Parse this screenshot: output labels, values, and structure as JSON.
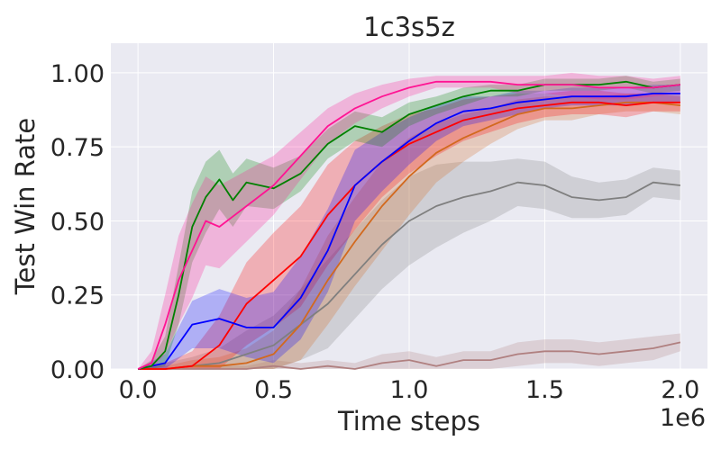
{
  "chart_data": {
    "type": "line",
    "title": "1c3s5z",
    "xlabel": "Time steps",
    "ylabel": "Test Win Rate",
    "x_scale_label": "1e6",
    "xlim": [
      -0.1,
      2.1
    ],
    "ylim": [
      0.0,
      1.1
    ],
    "x_ticks": [
      0.0,
      0.5,
      1.0,
      1.5,
      2.0
    ],
    "x_tick_labels": [
      "0.0",
      "0.5",
      "1.0",
      "1.5",
      "2.0"
    ],
    "y_ticks": [
      0.0,
      0.25,
      0.5,
      0.75,
      1.0
    ],
    "y_tick_labels": [
      "0.00",
      "0.25",
      "0.50",
      "0.75",
      "1.00"
    ],
    "grid": true,
    "background": "#eaeaf2",
    "series": [
      {
        "color": "#b08080",
        "x": [
          0.0,
          0.1,
          0.2,
          0.3,
          0.4,
          0.5,
          0.6,
          0.7,
          0.8,
          0.9,
          1.0,
          1.1,
          1.2,
          1.3,
          1.4,
          1.5,
          1.6,
          1.7,
          1.8,
          1.9,
          2.0
        ],
        "y": [
          0.0,
          0.0,
          0.0,
          0.0,
          0.0,
          0.01,
          0.0,
          0.01,
          0.0,
          0.02,
          0.03,
          0.01,
          0.03,
          0.03,
          0.05,
          0.06,
          0.06,
          0.05,
          0.06,
          0.07,
          0.09
        ],
        "band": [
          0.0,
          0.0,
          0.01,
          0.01,
          0.01,
          0.02,
          0.02,
          0.02,
          0.02,
          0.03,
          0.03,
          0.03,
          0.03,
          0.03,
          0.04,
          0.04,
          0.04,
          0.04,
          0.04,
          0.04,
          0.03
        ]
      },
      {
        "color": "#7f7f7f",
        "x": [
          0.0,
          0.1,
          0.2,
          0.3,
          0.4,
          0.5,
          0.6,
          0.7,
          0.8,
          0.9,
          1.0,
          1.1,
          1.2,
          1.3,
          1.4,
          1.5,
          1.6,
          1.7,
          1.8,
          1.9,
          2.0
        ],
        "y": [
          0.0,
          0.0,
          0.01,
          0.02,
          0.05,
          0.08,
          0.15,
          0.22,
          0.32,
          0.42,
          0.5,
          0.55,
          0.58,
          0.6,
          0.63,
          0.62,
          0.58,
          0.57,
          0.58,
          0.63,
          0.62
        ],
        "band": [
          0.0,
          0.02,
          0.03,
          0.05,
          0.08,
          0.1,
          0.12,
          0.15,
          0.15,
          0.15,
          0.15,
          0.14,
          0.12,
          0.1,
          0.08,
          0.08,
          0.07,
          0.06,
          0.06,
          0.05,
          0.05
        ]
      },
      {
        "color": "#d2691e",
        "x": [
          0.0,
          0.1,
          0.2,
          0.3,
          0.4,
          0.5,
          0.6,
          0.7,
          0.8,
          0.9,
          1.0,
          1.1,
          1.2,
          1.3,
          1.4,
          1.5,
          1.6,
          1.7,
          1.8,
          1.9,
          2.0
        ],
        "y": [
          0.0,
          0.0,
          0.01,
          0.01,
          0.02,
          0.05,
          0.15,
          0.3,
          0.43,
          0.55,
          0.65,
          0.73,
          0.78,
          0.82,
          0.86,
          0.88,
          0.88,
          0.89,
          0.9,
          0.9,
          0.89
        ],
        "band": [
          0.0,
          0.01,
          0.02,
          0.03,
          0.05,
          0.08,
          0.12,
          0.15,
          0.15,
          0.15,
          0.13,
          0.1,
          0.08,
          0.06,
          0.05,
          0.04,
          0.04,
          0.03,
          0.03,
          0.03,
          0.03
        ]
      },
      {
        "color": "#ff0000",
        "x": [
          0.0,
          0.1,
          0.2,
          0.3,
          0.4,
          0.5,
          0.6,
          0.7,
          0.8,
          0.9,
          1.0,
          1.1,
          1.2,
          1.3,
          1.4,
          1.5,
          1.6,
          1.7,
          1.8,
          1.9,
          2.0
        ],
        "y": [
          0.0,
          0.0,
          0.01,
          0.08,
          0.22,
          0.3,
          0.38,
          0.52,
          0.62,
          0.7,
          0.76,
          0.8,
          0.84,
          0.86,
          0.88,
          0.89,
          0.9,
          0.9,
          0.89,
          0.9,
          0.9
        ],
        "band": [
          0.0,
          0.02,
          0.05,
          0.1,
          0.14,
          0.16,
          0.17,
          0.17,
          0.15,
          0.12,
          0.1,
          0.08,
          0.07,
          0.06,
          0.05,
          0.04,
          0.04,
          0.04,
          0.04,
          0.03,
          0.03
        ]
      },
      {
        "color": "#0000ff",
        "x": [
          0.0,
          0.1,
          0.2,
          0.3,
          0.4,
          0.5,
          0.6,
          0.7,
          0.8,
          0.9,
          1.0,
          1.1,
          1.2,
          1.3,
          1.4,
          1.5,
          1.6,
          1.7,
          1.8,
          1.9,
          2.0
        ],
        "y": [
          0.0,
          0.02,
          0.15,
          0.17,
          0.14,
          0.14,
          0.24,
          0.4,
          0.62,
          0.7,
          0.77,
          0.83,
          0.87,
          0.88,
          0.9,
          0.91,
          0.92,
          0.92,
          0.92,
          0.93,
          0.93
        ],
        "band": [
          0.0,
          0.03,
          0.08,
          0.1,
          0.1,
          0.12,
          0.14,
          0.14,
          0.12,
          0.1,
          0.08,
          0.06,
          0.05,
          0.04,
          0.04,
          0.03,
          0.03,
          0.03,
          0.03,
          0.03,
          0.03
        ]
      },
      {
        "color": "#008000",
        "x": [
          0.0,
          0.05,
          0.1,
          0.15,
          0.2,
          0.25,
          0.3,
          0.35,
          0.4,
          0.5,
          0.6,
          0.7,
          0.8,
          0.9,
          1.0,
          1.1,
          1.2,
          1.3,
          1.4,
          1.5,
          1.6,
          1.7,
          1.8,
          1.9,
          2.0
        ],
        "y": [
          0.0,
          0.01,
          0.06,
          0.25,
          0.48,
          0.58,
          0.64,
          0.57,
          0.63,
          0.61,
          0.66,
          0.76,
          0.82,
          0.8,
          0.86,
          0.89,
          0.92,
          0.94,
          0.94,
          0.96,
          0.96,
          0.96,
          0.97,
          0.95,
          0.96
        ],
        "band": [
          0.0,
          0.02,
          0.05,
          0.1,
          0.12,
          0.12,
          0.1,
          0.09,
          0.08,
          0.07,
          0.06,
          0.05,
          0.05,
          0.05,
          0.04,
          0.03,
          0.03,
          0.02,
          0.02,
          0.02,
          0.02,
          0.02,
          0.02,
          0.02,
          0.02
        ]
      },
      {
        "color": "#ff1493",
        "x": [
          0.0,
          0.05,
          0.1,
          0.15,
          0.2,
          0.25,
          0.3,
          0.4,
          0.5,
          0.6,
          0.7,
          0.8,
          0.9,
          1.0,
          1.1,
          1.2,
          1.3,
          1.4,
          1.5,
          1.6,
          1.7,
          1.8,
          1.9,
          2.0
        ],
        "y": [
          0.0,
          0.02,
          0.15,
          0.3,
          0.4,
          0.5,
          0.48,
          0.55,
          0.62,
          0.72,
          0.82,
          0.88,
          0.92,
          0.95,
          0.97,
          0.97,
          0.97,
          0.96,
          0.96,
          0.96,
          0.95,
          0.95,
          0.95,
          0.96
        ],
        "band": [
          0.0,
          0.04,
          0.1,
          0.15,
          0.16,
          0.15,
          0.14,
          0.12,
          0.1,
          0.08,
          0.06,
          0.05,
          0.04,
          0.03,
          0.02,
          0.02,
          0.02,
          0.03,
          0.03,
          0.04,
          0.04,
          0.04,
          0.03,
          0.03
        ]
      }
    ]
  }
}
